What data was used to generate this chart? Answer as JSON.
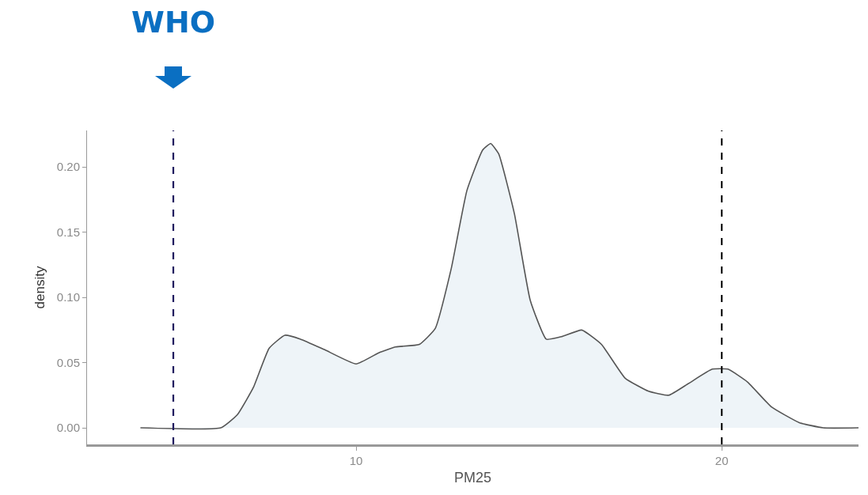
{
  "chart_data": {
    "type": "area",
    "xlabel": "PM25",
    "ylabel": "density",
    "x": [
      4.1,
      6.3,
      6.75,
      7.19,
      7.62,
      8.05,
      8.48,
      9.13,
      10.0,
      10.65,
      11.08,
      11.73,
      12.16,
      12.6,
      13.03,
      13.46,
      13.68,
      13.9,
      14.33,
      14.76,
      15.2,
      15.63,
      16.17,
      16.71,
      17.36,
      18.0,
      18.55,
      19.09,
      19.74,
      20.17,
      20.71,
      21.36,
      22.12,
      22.77,
      23.74
    ],
    "series": [
      {
        "color": "#555555",
        "values": [
          0,
          0,
          0.01,
          0.031,
          0.061,
          0.071,
          0.068,
          0.06,
          0.049,
          0.058,
          0.062,
          0.064,
          0.076,
          0.122,
          0.182,
          0.213,
          0.218,
          0.21,
          0.164,
          0.098,
          0.068,
          0.07,
          0.075,
          0.064,
          0.038,
          0.028,
          0.025,
          0.034,
          0.045,
          0.045,
          0.035,
          0.016,
          0.004,
          0,
          0
        ]
      }
    ],
    "xlim": [
      2.64,
      23.74
    ],
    "ylim": [
      -0.0127,
      0.228
    ],
    "xticks": [
      10,
      20
    ],
    "yticks": [
      {
        "value": 0,
        "label": "0.00"
      },
      {
        "value": 0.05,
        "label": "0.05"
      },
      {
        "value": 0.1,
        "label": "0.10"
      },
      {
        "value": 0.15,
        "label": "0.15"
      },
      {
        "value": 0.2,
        "label": "0.20"
      }
    ],
    "grid": false,
    "annotations": [
      "WHO"
    ],
    "ref_lines": [
      {
        "axis": "x",
        "value": 5,
        "label": null,
        "color": "#1f1a5e",
        "line_style": "dashed"
      },
      {
        "axis": "x",
        "value": 20,
        "label": null,
        "color": "#111111",
        "line_style": "dashed"
      }
    ]
  }
}
